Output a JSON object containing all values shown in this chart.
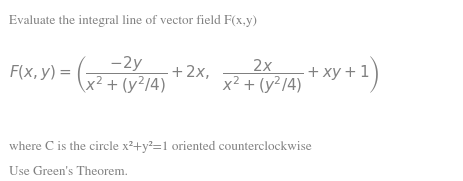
{
  "title_text": "Evaluate the integral line of vector field F(x,y)",
  "formula": "$F(x, y) = \\left(\\dfrac{-2y}{x^2 + (y^2/4)} + 2x,\\ \\ \\dfrac{2x}{x^2 + (y^2/4)} + xy + 1\\right)$",
  "line2": "where C is the circle x²+y²=1 oriented counterclockwise",
  "line3": "Use Green's Theorem.",
  "bg_color": "#ffffff",
  "text_color": "#808080",
  "title_fontsize": 9.5,
  "formula_fontsize": 11,
  "body_fontsize": 9.5,
  "fig_width": 4.63,
  "fig_height": 1.81,
  "dpi": 100
}
